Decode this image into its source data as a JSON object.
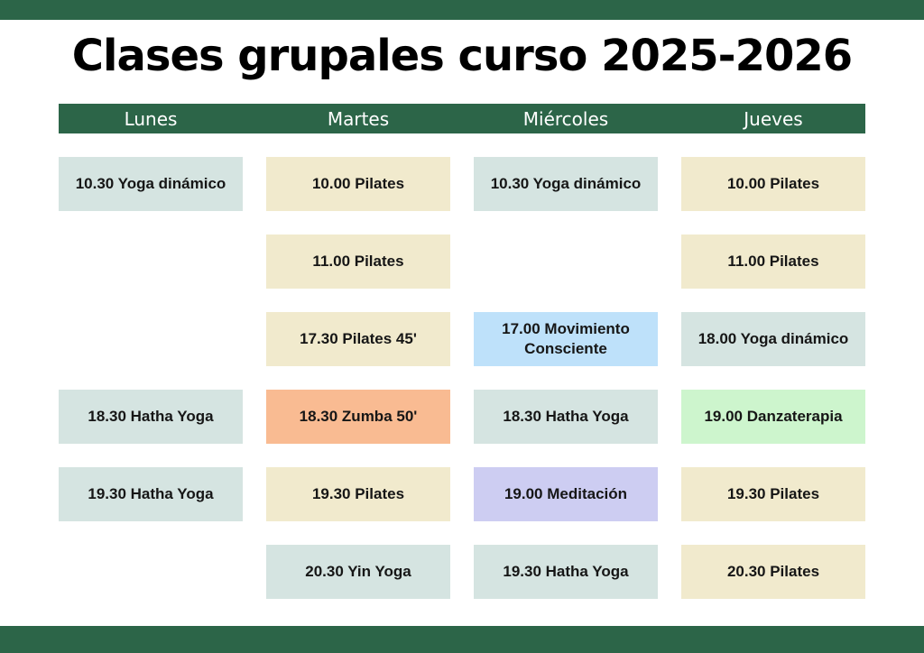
{
  "page": {
    "title": "Clases grupales curso 2025-2026"
  },
  "colors": {
    "bar_green": "#2c6548",
    "header_green": "#2c6548",
    "teal": "#d5e4e1",
    "cream": "#f1eacd",
    "blue": "#bee1fa",
    "peach": "#f9bb92",
    "mint": "#cdf5cd",
    "lavender": "#cdcdf2",
    "text": "#161616"
  },
  "schedule": {
    "days": [
      "Lunes",
      "Martes",
      "Miércoles",
      "Jueves"
    ],
    "rows": [
      [
        {
          "label": "10.30 Yoga dinámico",
          "color": "teal"
        },
        {
          "label": "10.00 Pilates",
          "color": "cream"
        },
        {
          "label": "10.30 Yoga dinámico",
          "color": "teal"
        },
        {
          "label": "10.00 Pilates",
          "color": "cream"
        }
      ],
      [
        null,
        {
          "label": "11.00 Pilates",
          "color": "cream"
        },
        null,
        {
          "label": "11.00 Pilates",
          "color": "cream"
        }
      ],
      [
        null,
        {
          "label": "17.30 Pilates 45'",
          "color": "cream"
        },
        {
          "label": "17.00 Movimiento Consciente",
          "color": "blue"
        },
        {
          "label": "18.00 Yoga dinámico",
          "color": "teal"
        }
      ],
      [
        {
          "label": "18.30 Hatha Yoga",
          "color": "teal"
        },
        {
          "label": "18.30 Zumba 50'",
          "color": "peach"
        },
        {
          "label": "18.30 Hatha Yoga",
          "color": "teal"
        },
        {
          "label": "19.00 Danzaterapia",
          "color": "mint"
        }
      ],
      [
        {
          "label": "19.30 Hatha Yoga",
          "color": "teal"
        },
        {
          "label": "19.30 Pilates",
          "color": "cream"
        },
        {
          "label": "19.00 Meditación",
          "color": "lavender"
        },
        {
          "label": "19.30 Pilates",
          "color": "cream"
        }
      ],
      [
        null,
        {
          "label": "20.30 Yin Yoga",
          "color": "teal"
        },
        {
          "label": "19.30 Hatha Yoga",
          "color": "teal"
        },
        {
          "label": "20.30 Pilates",
          "color": "cream"
        }
      ]
    ]
  }
}
